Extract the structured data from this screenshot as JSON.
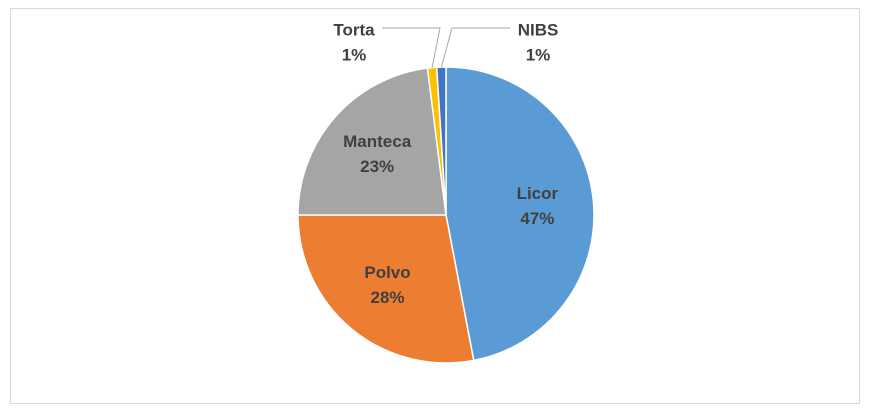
{
  "chart_data": {
    "type": "pie",
    "categories": [
      "Licor",
      "Polvo",
      "Manteca",
      "Torta",
      "NIBS"
    ],
    "values": [
      47,
      28,
      23,
      1,
      1
    ],
    "value_labels": [
      "47%",
      "28%",
      "23%",
      "1%",
      "1%"
    ],
    "colors": [
      "#5b9bd5",
      "#ed7d31",
      "#a5a5a5",
      "#ffc000",
      "#4472c4"
    ]
  }
}
